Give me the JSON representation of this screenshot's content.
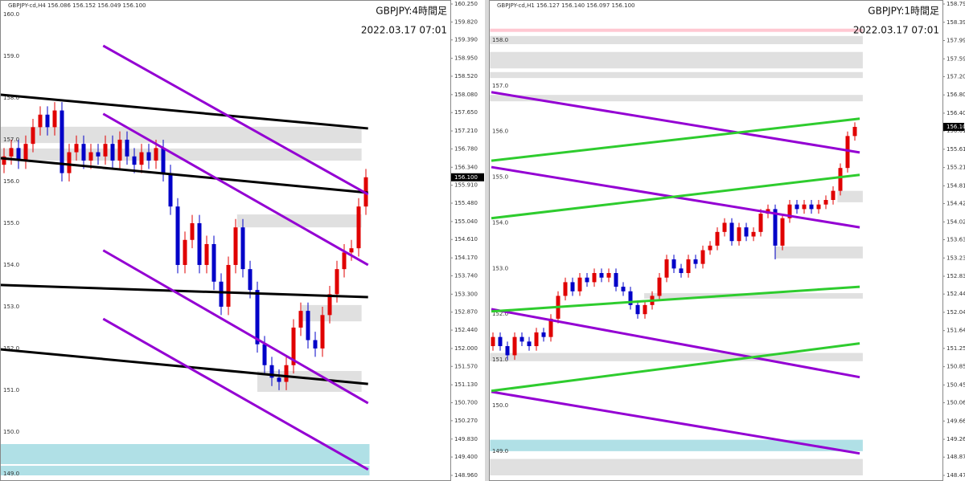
{
  "chart_data": [
    {
      "type": "candlestick",
      "header": "GBPJPY-cd,H4  156.086 156.152 156.049 156.100",
      "title": "GBPJPY:4時間足",
      "subtitle": "2022.03.17 07:01",
      "up_color": "#e00000",
      "down_color": "#0000c8",
      "open": [
        156.4,
        156.6,
        156.8,
        156.5,
        156.9,
        157.3,
        157.6,
        157.3,
        157.7,
        156.2,
        156.7,
        156.9,
        156.5,
        156.7,
        156.6,
        156.9,
        156.5,
        157.0,
        156.6,
        156.4,
        156.7,
        156.5,
        156.8,
        156.2,
        155.4,
        154.0,
        154.6,
        155.0,
        154.0,
        154.5,
        153.6,
        153.0,
        154.0,
        154.9,
        153.9,
        153.4,
        152.1,
        151.6,
        151.3,
        151.2,
        151.6,
        152.5,
        152.9,
        152.2,
        152.0,
        152.8,
        153.3,
        153.9,
        154.3,
        154.4,
        155.4
      ],
      "high": [
        156.8,
        157.0,
        157.0,
        157.1,
        157.5,
        157.8,
        157.8,
        157.9,
        157.9,
        156.9,
        157.1,
        157.1,
        156.9,
        156.9,
        157.1,
        157.1,
        157.2,
        157.2,
        156.8,
        156.9,
        156.9,
        157.0,
        157.0,
        156.4,
        155.6,
        154.8,
        155.2,
        155.2,
        154.7,
        154.7,
        153.8,
        154.2,
        155.1,
        155.1,
        154.1,
        153.6,
        152.3,
        151.8,
        151.5,
        151.8,
        152.7,
        153.1,
        153.1,
        152.4,
        153.0,
        153.5,
        154.1,
        154.5,
        154.6,
        155.6,
        156.3
      ],
      "low": [
        156.2,
        156.4,
        156.3,
        156.3,
        156.7,
        157.1,
        157.1,
        157.1,
        156.0,
        156.0,
        156.5,
        156.3,
        156.3,
        156.4,
        156.4,
        156.3,
        156.3,
        156.4,
        156.2,
        156.2,
        156.3,
        156.3,
        156.0,
        155.2,
        153.8,
        153.8,
        154.4,
        153.8,
        153.8,
        153.4,
        152.8,
        152.8,
        153.8,
        153.7,
        153.2,
        151.9,
        151.4,
        151.1,
        151.0,
        151.0,
        151.4,
        152.3,
        152.0,
        151.8,
        151.8,
        152.6,
        153.1,
        153.7,
        154.1,
        154.2,
        155.2
      ],
      "close": [
        156.6,
        156.8,
        156.5,
        156.9,
        157.3,
        157.6,
        157.3,
        157.7,
        156.2,
        156.7,
        156.9,
        156.5,
        156.7,
        156.6,
        156.9,
        156.5,
        157.0,
        156.6,
        156.4,
        156.7,
        156.5,
        156.8,
        156.2,
        155.4,
        154.0,
        154.6,
        155.0,
        154.0,
        154.5,
        153.6,
        153.0,
        154.0,
        154.9,
        153.9,
        153.4,
        152.1,
        151.6,
        151.3,
        151.2,
        151.6,
        152.5,
        152.9,
        152.2,
        152.0,
        152.8,
        153.3,
        153.9,
        154.3,
        154.4,
        155.4,
        156.1
      ],
      "last_price": {
        "value": 156.1,
        "label": "156.100"
      },
      "ylim": [
        148.96,
        160.25
      ],
      "yticks": [
        {
          "value": 160.25,
          "label": "160.250"
        },
        {
          "value": 159.82,
          "label": "159.820"
        },
        {
          "value": 159.39,
          "label": "159.390"
        },
        {
          "value": 158.95,
          "label": "158.950"
        },
        {
          "value": 158.52,
          "label": "158.520"
        },
        {
          "value": 158.08,
          "label": "158.080"
        },
        {
          "value": 157.65,
          "label": "157.650"
        },
        {
          "value": 157.21,
          "label": "157.210"
        },
        {
          "value": 156.78,
          "label": "156.780"
        },
        {
          "value": 156.34,
          "label": "156.340"
        },
        {
          "value": 155.91,
          "label": "155.910"
        },
        {
          "value": 155.48,
          "label": "155.480"
        },
        {
          "value": 155.04,
          "label": "155.040"
        },
        {
          "value": 154.61,
          "label": "154.610"
        },
        {
          "value": 154.17,
          "label": "154.170"
        },
        {
          "value": 153.74,
          "label": "153.740"
        },
        {
          "value": 153.3,
          "label": "153.300"
        },
        {
          "value": 152.87,
          "label": "152.870"
        },
        {
          "value": 152.44,
          "label": "152.440"
        },
        {
          "value": 152,
          "label": "152.000"
        },
        {
          "value": 151.57,
          "label": "151.570"
        },
        {
          "value": 151.13,
          "label": "151.130"
        },
        {
          "value": 150.7,
          "label": "150.700"
        },
        {
          "value": 150.27,
          "label": "150.270"
        },
        {
          "value": 149.83,
          "label": "149.830"
        },
        {
          "value": 149.4,
          "label": "149.400"
        },
        {
          "value": 148.96,
          "label": "148.960"
        }
      ],
      "levels": [
        {
          "value": 160,
          "label": "160.0"
        },
        {
          "value": 159,
          "label": "159.0"
        },
        {
          "value": 158,
          "label": "158.0"
        },
        {
          "value": 157,
          "label": "157.0"
        },
        {
          "value": 156,
          "label": "156.0"
        },
        {
          "value": 155,
          "label": "155.0"
        },
        {
          "value": 154,
          "label": "154.0"
        },
        {
          "value": 153,
          "label": "153.0"
        },
        {
          "value": 152,
          "label": "152.0"
        },
        {
          "value": 151,
          "label": "151.0"
        },
        {
          "value": 150,
          "label": "150.0"
        },
        {
          "value": 149,
          "label": "149.0"
        }
      ],
      "zones": [
        {
          "from": -0.6,
          "to": 49.4,
          "top": 157.31,
          "bottom": 156.92,
          "color": "#e0e0e0"
        },
        {
          "from": -0.6,
          "to": 49.4,
          "top": 156.79,
          "bottom": 156.5,
          "color": "#e0e0e0"
        },
        {
          "from": 32.2,
          "to": 49.4,
          "top": 155.21,
          "bottom": 154.9,
          "color": "#e0e0e0"
        },
        {
          "from": 41.1,
          "to": 49.4,
          "top": 153.04,
          "bottom": 152.65,
          "color": "#e0e0e0"
        },
        {
          "from": 35,
          "to": 49.4,
          "top": 151.46,
          "bottom": 150.96,
          "color": "#e0e0e0"
        },
        {
          "from": -0.6,
          "to": 50.5,
          "top": 149.71,
          "bottom": 149.23,
          "color": "#b0e0e6"
        },
        {
          "from": -0.6,
          "to": 50.5,
          "top": 149.19,
          "bottom": 148.96,
          "color": "#b0e0e6"
        }
      ],
      "lines": [
        {
          "x": [
            -0.56,
            50.3
          ],
          "y": [
            158.08,
            157.27
          ],
          "color": "#000000"
        },
        {
          "x": [
            -0.56,
            50.3
          ],
          "y": [
            156.56,
            155.73
          ],
          "color": "#000000"
        },
        {
          "x": [
            -0.56,
            50.3
          ],
          "y": [
            153.52,
            153.23
          ],
          "color": "#000000"
        },
        {
          "x": [
            -0.56,
            50.3
          ],
          "y": [
            151.98,
            151.15
          ],
          "color": "#000000"
        },
        {
          "x": [
            13.7,
            50.3
          ],
          "y": [
            159.25,
            155.69
          ],
          "color": "#9400d3"
        },
        {
          "x": [
            13.7,
            50.3
          ],
          "y": [
            157.62,
            154.0
          ],
          "color": "#9400d3"
        },
        {
          "x": [
            13.7,
            50.3
          ],
          "y": [
            154.35,
            150.69
          ],
          "color": "#9400d3"
        },
        {
          "x": [
            13.7,
            50.3
          ],
          "y": [
            152.71,
            149.1
          ],
          "color": "#9400d3"
        }
      ]
    },
    {
      "type": "candlestick",
      "header": "GBPJPY-cd,H1  156.127 156.140 156.097 156.100",
      "title": "GBPJPY:1時間足",
      "subtitle": "2022.03.17 07:01",
      "up_color": "#e00000",
      "down_color": "#0000c8",
      "open": [
        151.3,
        151.5,
        151.3,
        151.1,
        151.5,
        151.4,
        151.3,
        151.6,
        151.5,
        151.9,
        152.4,
        152.7,
        152.5,
        152.8,
        152.7,
        152.9,
        152.8,
        152.9,
        152.6,
        152.5,
        152.2,
        152.0,
        152.2,
        152.4,
        152.8,
        153.2,
        153.0,
        152.9,
        153.2,
        153.1,
        153.4,
        153.5,
        153.8,
        154.0,
        153.6,
        153.9,
        153.7,
        153.8,
        154.2,
        154.3,
        153.5,
        154.1,
        154.4,
        154.3,
        154.4,
        154.3,
        154.4,
        154.5,
        154.7,
        155.2,
        155.9
      ],
      "high": [
        151.6,
        151.6,
        151.4,
        151.6,
        151.6,
        151.5,
        151.7,
        151.7,
        152.0,
        152.5,
        152.8,
        152.8,
        152.9,
        152.9,
        153.0,
        153.0,
        153.0,
        153.0,
        152.7,
        152.6,
        152.3,
        152.3,
        152.5,
        152.9,
        153.3,
        153.3,
        153.1,
        153.3,
        153.3,
        153.5,
        153.6,
        153.9,
        154.1,
        154.1,
        154.0,
        154.0,
        153.9,
        154.3,
        154.4,
        154.4,
        154.2,
        154.5,
        154.5,
        154.5,
        154.5,
        154.5,
        154.6,
        154.8,
        155.3,
        156.0,
        156.2
      ],
      "low": [
        151.2,
        151.2,
        151.0,
        151.0,
        151.3,
        151.2,
        151.2,
        151.4,
        151.4,
        151.8,
        152.3,
        152.4,
        152.4,
        152.6,
        152.6,
        152.7,
        152.7,
        152.5,
        152.4,
        152.1,
        151.9,
        151.9,
        152.1,
        152.3,
        152.7,
        152.9,
        152.8,
        152.8,
        153.0,
        153.0,
        153.3,
        153.4,
        153.7,
        153.5,
        153.5,
        153.6,
        153.6,
        153.7,
        154.1,
        153.2,
        153.4,
        154.0,
        154.2,
        154.2,
        154.2,
        154.2,
        154.3,
        154.4,
        154.6,
        155.1,
        155.8
      ],
      "close": [
        151.5,
        151.3,
        151.1,
        151.5,
        151.4,
        151.3,
        151.6,
        151.5,
        151.9,
        152.4,
        152.7,
        152.5,
        152.8,
        152.7,
        152.9,
        152.8,
        152.9,
        152.6,
        152.5,
        152.2,
        152.0,
        152.2,
        152.4,
        152.8,
        153.2,
        153.0,
        152.9,
        153.2,
        153.1,
        153.4,
        153.5,
        153.8,
        154.0,
        153.6,
        153.9,
        153.7,
        153.8,
        154.2,
        154.3,
        153.5,
        154.1,
        154.4,
        154.3,
        154.4,
        154.3,
        154.4,
        154.5,
        154.7,
        155.2,
        155.9,
        156.1
      ],
      "last_price": {
        "value": 156.1,
        "label": "156.100"
      },
      "ylim": [
        148.47,
        158.79
      ],
      "yticks": [
        {
          "value": 158.79,
          "label": "158.790"
        },
        {
          "value": 158.39,
          "label": "158.390"
        },
        {
          "value": 157.99,
          "label": "157.990"
        },
        {
          "value": 157.59,
          "label": "157.590"
        },
        {
          "value": 157.2,
          "label": "157.200"
        },
        {
          "value": 156.8,
          "label": "156.800"
        },
        {
          "value": 156.4,
          "label": "156.400"
        },
        {
          "value": 156.01,
          "label": "156.010"
        },
        {
          "value": 155.61,
          "label": "155.610"
        },
        {
          "value": 155.21,
          "label": "155.210"
        },
        {
          "value": 154.81,
          "label": "154.810"
        },
        {
          "value": 154.42,
          "label": "154.420"
        },
        {
          "value": 154.02,
          "label": "154.020"
        },
        {
          "value": 153.63,
          "label": "153.630"
        },
        {
          "value": 153.23,
          "label": "153.230"
        },
        {
          "value": 152.83,
          "label": "152.830"
        },
        {
          "value": 152.44,
          "label": "152.440"
        },
        {
          "value": 152.04,
          "label": "152.040"
        },
        {
          "value": 151.64,
          "label": "151.640"
        },
        {
          "value": 151.25,
          "label": "151.250"
        },
        {
          "value": 150.85,
          "label": "150.850"
        },
        {
          "value": 150.45,
          "label": "150.450"
        },
        {
          "value": 150.06,
          "label": "150.060"
        },
        {
          "value": 149.66,
          "label": "149.660"
        },
        {
          "value": 149.26,
          "label": "149.260"
        },
        {
          "value": 148.87,
          "label": "148.870"
        },
        {
          "value": 148.47,
          "label": "148.470"
        }
      ],
      "levels": [
        {
          "value": 158,
          "label": "158.0"
        },
        {
          "value": 157,
          "label": "157.0"
        },
        {
          "value": 156,
          "label": "156.0"
        },
        {
          "value": 155,
          "label": "155.0"
        },
        {
          "value": 154,
          "label": "154.0"
        },
        {
          "value": 153,
          "label": "153.0"
        },
        {
          "value": 152,
          "label": "152.0"
        },
        {
          "value": 151,
          "label": "151.0"
        },
        {
          "value": 150,
          "label": "150.0"
        },
        {
          "value": 149,
          "label": "149.0"
        }
      ],
      "zones": [
        {
          "from": -0.4,
          "to": 51.1,
          "top": 158.25,
          "bottom": 158.18,
          "color": "#ffc8d2"
        },
        {
          "from": -0.4,
          "to": 51.1,
          "top": 158.09,
          "bottom": 157.91,
          "color": "#e0e0e0"
        },
        {
          "from": -0.4,
          "to": 51.1,
          "top": 157.74,
          "bottom": 157.38,
          "color": "#e0e0e0"
        },
        {
          "from": -0.4,
          "to": 51.1,
          "top": 157.3,
          "bottom": 157.17,
          "color": "#e0e0e0"
        },
        {
          "from": -0.4,
          "to": 51.1,
          "top": 156.8,
          "bottom": 156.66,
          "color": "#e0e0e0"
        },
        {
          "from": 47.6,
          "to": 51.1,
          "top": 154.7,
          "bottom": 154.45,
          "color": "#e0e0e0"
        },
        {
          "from": 38.9,
          "to": 51.1,
          "top": 153.48,
          "bottom": 153.22,
          "color": "#e0e0e0"
        },
        {
          "from": 20.9,
          "to": 51.1,
          "top": 152.46,
          "bottom": 152.34,
          "color": "#e0e0e0"
        },
        {
          "from": -0.4,
          "to": 51.1,
          "top": 151.15,
          "bottom": 150.97,
          "color": "#e0e0e0"
        },
        {
          "from": -0.4,
          "to": 51.1,
          "top": 149.25,
          "bottom": 149.0,
          "color": "#b0e0e6"
        },
        {
          "from": -0.4,
          "to": 51.1,
          "top": 148.83,
          "bottom": 148.47,
          "color": "#e0e0e0"
        }
      ],
      "lines": [
        {
          "x": [
            -0.22,
            50.67
          ],
          "y": [
            156.86,
            155.54
          ],
          "color": "#9400d3"
        },
        {
          "x": [
            -0.22,
            50.67
          ],
          "y": [
            155.22,
            153.9
          ],
          "color": "#9400d3"
        },
        {
          "x": [
            -0.22,
            50.67
          ],
          "y": [
            152.11,
            150.62
          ],
          "color": "#9400d3"
        },
        {
          "x": [
            -0.22,
            50.67
          ],
          "y": [
            150.3,
            148.95
          ],
          "color": "#9400d3"
        },
        {
          "x": [
            -0.22,
            50.67
          ],
          "y": [
            155.36,
            156.28
          ],
          "color": "#2ecc2e"
        },
        {
          "x": [
            -0.22,
            50.67
          ],
          "y": [
            154.1,
            155.05
          ],
          "color": "#2ecc2e"
        },
        {
          "x": [
            -0.22,
            50.67
          ],
          "y": [
            152.06,
            152.6
          ],
          "color": "#2ecc2e"
        },
        {
          "x": [
            -0.22,
            50.67
          ],
          "y": [
            150.32,
            151.36
          ],
          "color": "#2ecc2e"
        }
      ]
    }
  ]
}
